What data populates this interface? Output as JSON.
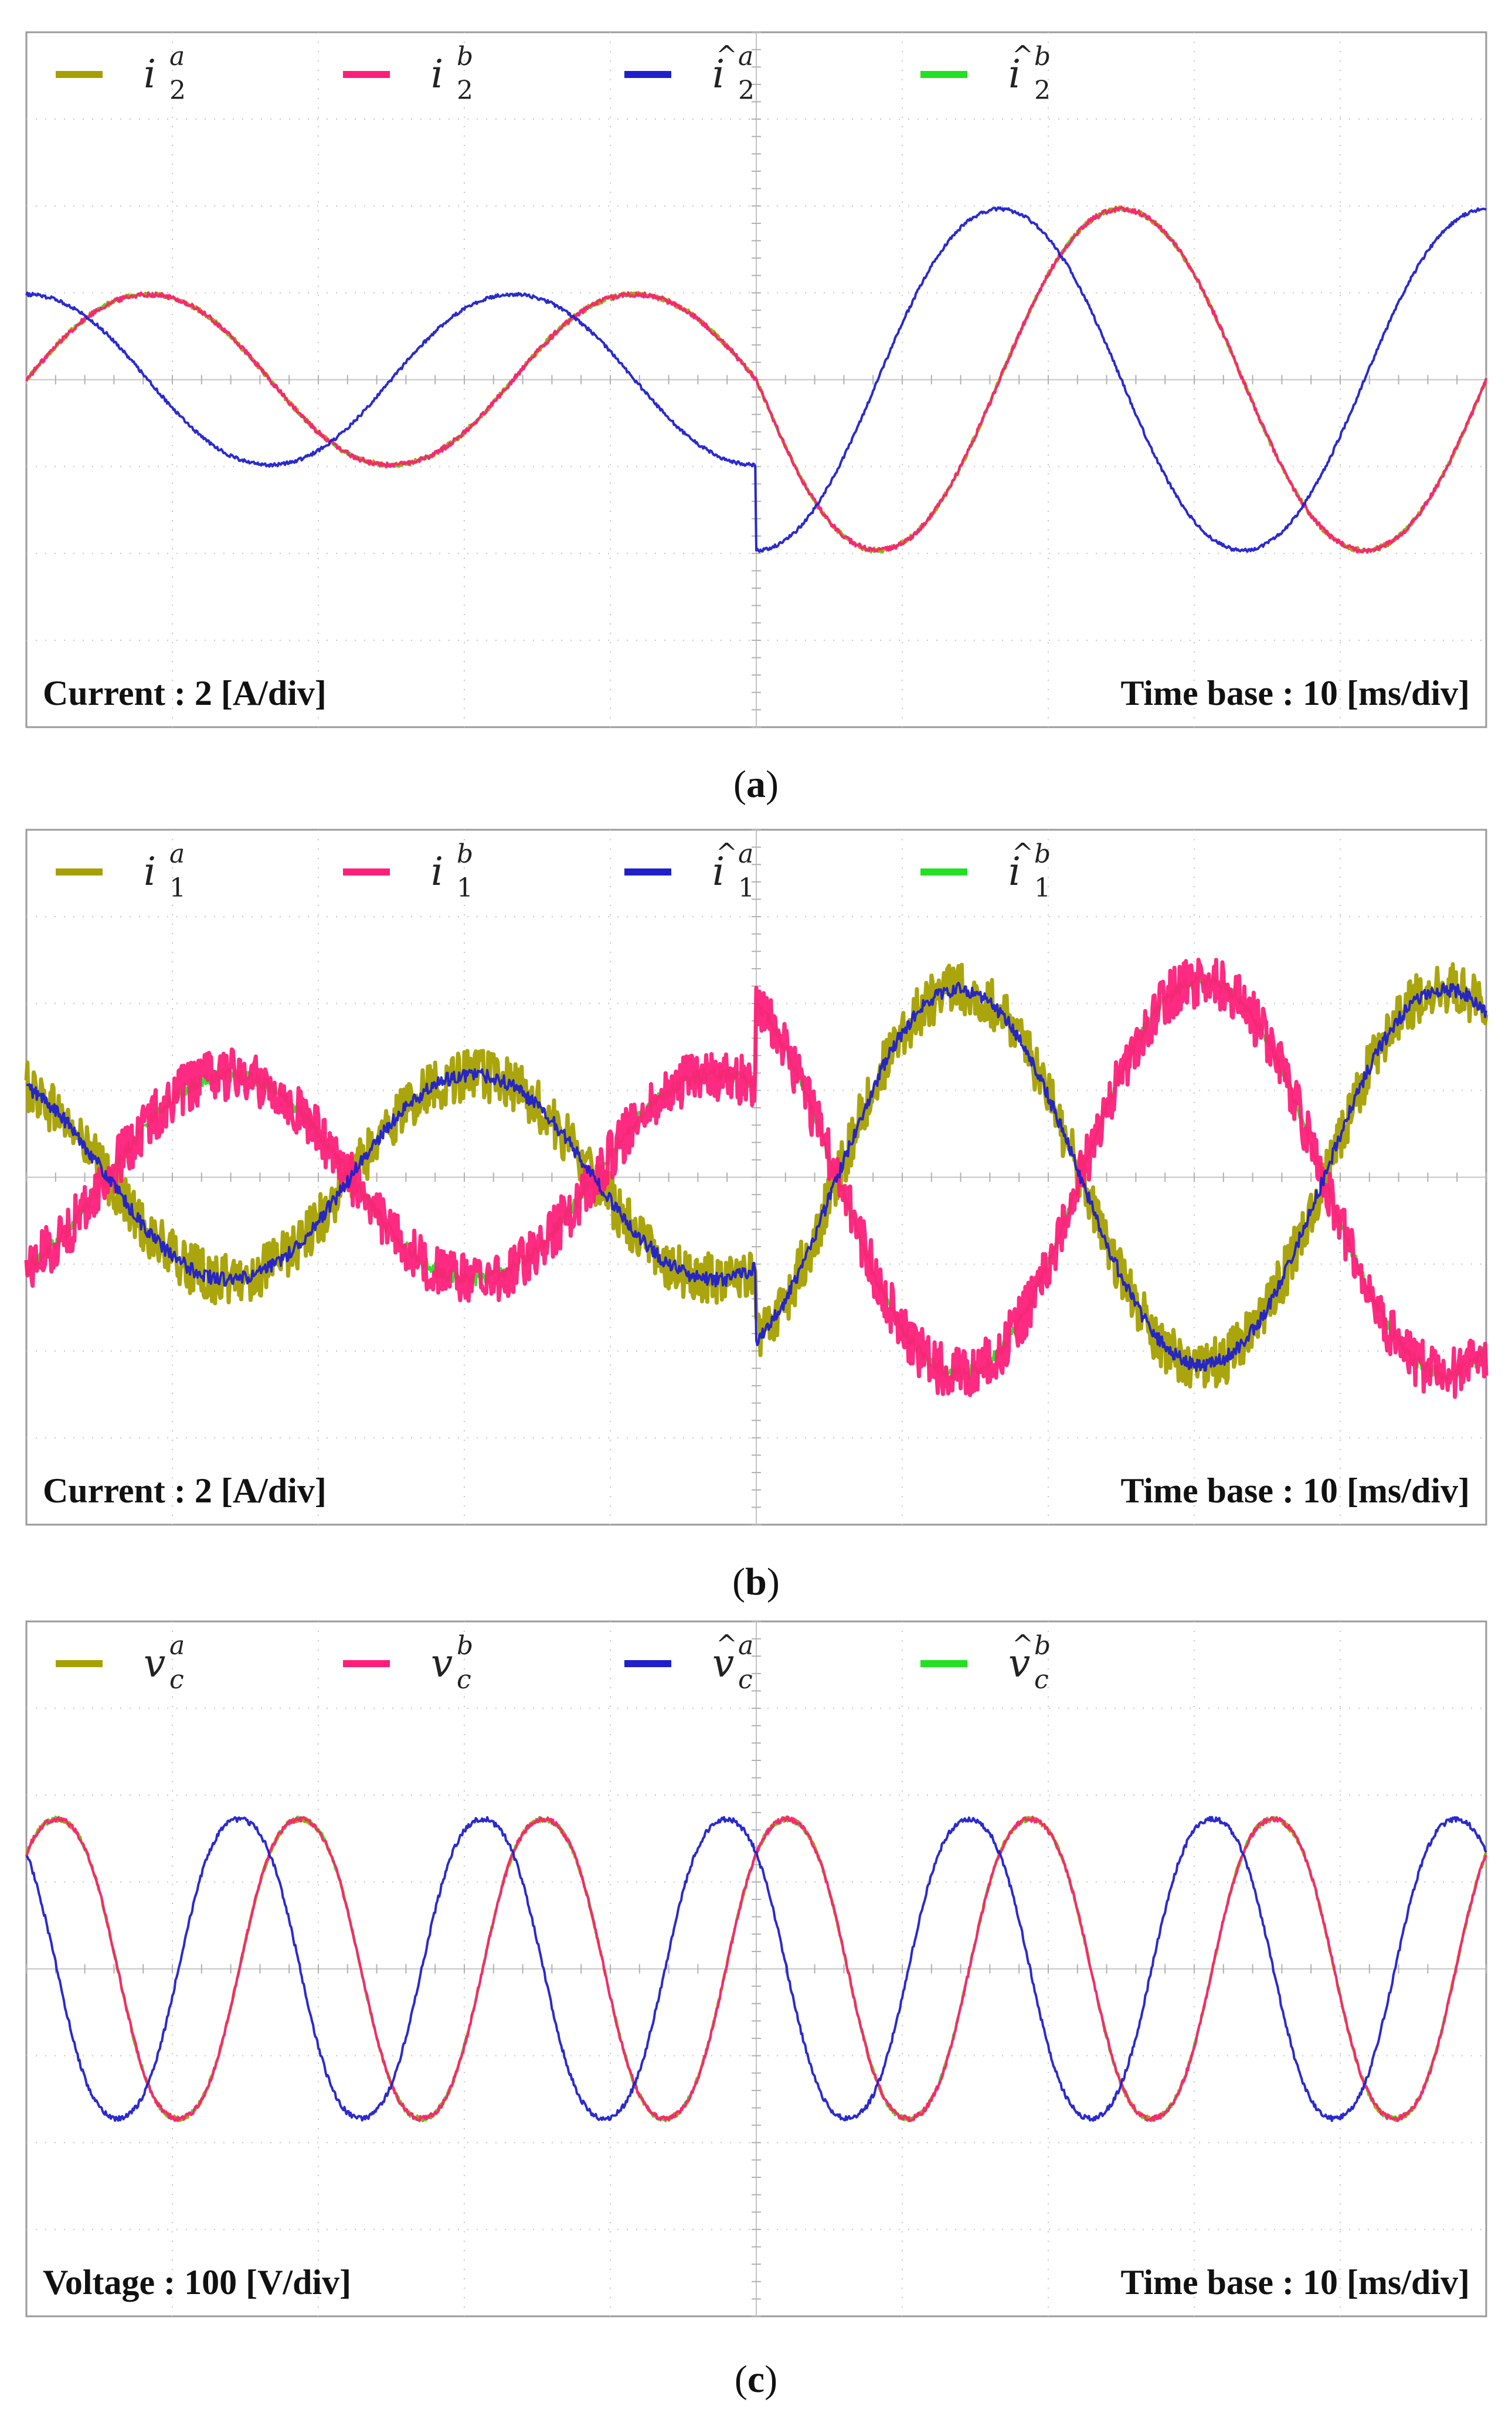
{
  "chart_data": [
    {
      "type": "line",
      "panel_caption": {
        "open": "(",
        "letter": "a",
        "close": ")"
      },
      "y_scale_label": "Current : 2 [A/div]",
      "time_base_label": "Time base : 10 [ms/div]",
      "legend": [
        {
          "symbol": "i",
          "hat": false,
          "sub": "2",
          "sup": "a",
          "color": "#a6a000"
        },
        {
          "symbol": "i",
          "hat": false,
          "sub": "2",
          "sup": "b",
          "color": "#ff1f7a"
        },
        {
          "symbol": "i",
          "hat": true,
          "sub": "2",
          "sup": "a",
          "color": "#1f1fcc"
        },
        {
          "symbol": "i",
          "hat": true,
          "sub": "2",
          "sup": "b",
          "color": "#22e022"
        }
      ],
      "divisions": {
        "x": 10,
        "y": 8
      },
      "x_range_ms": [
        0,
        100
      ],
      "y_range_div": [
        -4,
        4
      ],
      "zero_line_div": 0,
      "step_at_ms": 50,
      "frequency_hz": 30,
      "series": [
        {
          "ref": 0,
          "amplitude_div": [
            1.0,
            2.0
          ],
          "phase_deg": 0,
          "noise_div": 0.03
        },
        {
          "ref": 1,
          "amplitude_div": [
            1.0,
            2.0
          ],
          "phase_deg": 0,
          "noise_div": 0.03
        },
        {
          "ref": 2,
          "amplitude_div": [
            1.0,
            2.0
          ],
          "phase_deg": 90,
          "noise_div": 0.02
        },
        {
          "ref": 3,
          "amplitude_div": [
            1.0,
            2.0
          ],
          "phase_deg": 0,
          "noise_div": 0.02
        }
      ]
    },
    {
      "type": "line",
      "panel_caption": {
        "open": "(",
        "letter": "b",
        "close": ")"
      },
      "y_scale_label": "Current : 2 [A/div]",
      "time_base_label": "Time base : 10 [ms/div]",
      "legend": [
        {
          "symbol": "i",
          "hat": false,
          "sub": "1",
          "sup": "a",
          "color": "#a6a000"
        },
        {
          "symbol": "i",
          "hat": false,
          "sub": "1",
          "sup": "b",
          "color": "#ff1f7a"
        },
        {
          "symbol": "i",
          "hat": true,
          "sub": "1",
          "sup": "a",
          "color": "#1f1fcc"
        },
        {
          "symbol": "i",
          "hat": true,
          "sub": "1",
          "sup": "b",
          "color": "#22e022"
        }
      ],
      "divisions": {
        "x": 10,
        "y": 8
      },
      "x_range_ms": [
        0,
        100
      ],
      "y_range_div": [
        -4,
        4
      ],
      "zero_line_div": 0,
      "step_at_ms": 50,
      "frequency_hz": 30,
      "series": [
        {
          "ref": 0,
          "amplitude_div": [
            1.2,
            2.2
          ],
          "phase_deg": 120,
          "noise_div": 0.3
        },
        {
          "ref": 1,
          "amplitude_div": [
            1.2,
            2.3
          ],
          "phase_deg": 300,
          "noise_div": 0.3
        },
        {
          "ref": 2,
          "amplitude_div": [
            1.2,
            2.2
          ],
          "phase_deg": 120,
          "noise_div": 0.08
        },
        {
          "ref": 3,
          "amplitude_div": [
            1.2,
            2.3
          ],
          "phase_deg": 300,
          "noise_div": 0.08
        }
      ]
    },
    {
      "type": "line",
      "panel_caption": {
        "open": "(",
        "letter": "c",
        "close": ")"
      },
      "y_scale_label": "Voltage : 100 [V/div]",
      "time_base_label": "Time base : 10 [ms/div]",
      "legend": [
        {
          "symbol": "v",
          "hat": false,
          "sub": "c",
          "sup": "a",
          "color": "#a6a000"
        },
        {
          "symbol": "v",
          "hat": false,
          "sub": "c",
          "sup": "b",
          "color": "#ff1f7a"
        },
        {
          "symbol": "v",
          "hat": true,
          "sub": "c",
          "sup": "a",
          "color": "#1f1fcc"
        },
        {
          "symbol": "v",
          "hat": true,
          "sub": "c",
          "sup": "b",
          "color": "#22e022"
        }
      ],
      "divisions": {
        "x": 10,
        "y": 8
      },
      "x_range_ms": [
        0,
        100
      ],
      "y_range_div": [
        -4,
        4
      ],
      "zero_line_div": 0,
      "step_at_ms": null,
      "frequency_hz": 60,
      "series": [
        {
          "ref": 0,
          "amplitude_div": [
            1.8,
            1.8
          ],
          "phase_deg": 45,
          "noise_div": 0.03
        },
        {
          "ref": 1,
          "amplitude_div": [
            1.8,
            1.8
          ],
          "phase_deg": 45,
          "noise_div": 0.03
        },
        {
          "ref": 2,
          "amplitude_div": [
            1.8,
            1.8
          ],
          "phase_deg": 135,
          "noise_div": 0.03
        },
        {
          "ref": 3,
          "amplitude_div": [
            1.8,
            1.8
          ],
          "phase_deg": 45,
          "noise_div": 0.03
        }
      ]
    }
  ]
}
